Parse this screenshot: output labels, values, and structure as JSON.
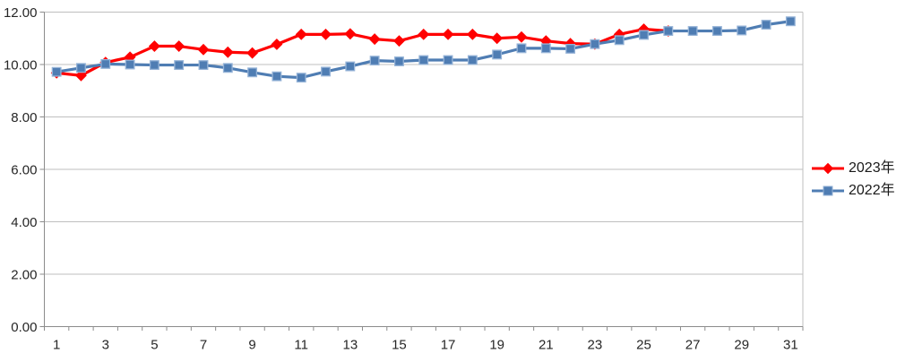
{
  "chart_data": {
    "type": "line",
    "title": "",
    "xlabel": "",
    "ylabel": "",
    "x": [
      1,
      2,
      3,
      4,
      5,
      6,
      7,
      8,
      9,
      10,
      11,
      12,
      13,
      14,
      15,
      16,
      17,
      18,
      19,
      20,
      21,
      22,
      23,
      24,
      25,
      26,
      27,
      28,
      29,
      30,
      31
    ],
    "x_tick_labels": [
      "1",
      "3",
      "5",
      "7",
      "9",
      "11",
      "13",
      "15",
      "17",
      "19",
      "21",
      "23",
      "25",
      "27",
      "29",
      "31"
    ],
    "y_tick_labels": [
      "0.00",
      "2.00",
      "4.00",
      "6.00",
      "8.00",
      "10.00",
      "12.00"
    ],
    "ylim": [
      0,
      12
    ],
    "grid": true,
    "legend_position": "right",
    "series": [
      {
        "name": "2023年",
        "color": "#FF0000",
        "marker": "diamond",
        "marker_border": "#FF0000",
        "values": [
          9.68,
          9.58,
          10.08,
          10.28,
          10.7,
          10.7,
          10.57,
          10.47,
          10.44,
          10.77,
          11.15,
          11.15,
          11.17,
          10.97,
          10.9,
          11.15,
          11.15,
          11.15,
          11.0,
          11.05,
          10.9,
          10.8,
          10.78,
          11.15,
          11.35,
          11.28,
          null,
          null,
          null,
          null,
          null
        ]
      },
      {
        "name": "2022年",
        "color": "#4F7DB3",
        "marker": "square",
        "marker_border": "#95B3D7",
        "values": [
          9.72,
          9.87,
          10.02,
          10.0,
          9.98,
          9.98,
          9.98,
          9.87,
          9.7,
          9.55,
          9.5,
          9.73,
          9.93,
          10.15,
          10.12,
          10.17,
          10.17,
          10.17,
          10.38,
          10.62,
          10.62,
          10.6,
          10.78,
          10.93,
          11.13,
          11.28,
          11.28,
          11.28,
          11.3,
          11.52,
          11.65
        ]
      }
    ]
  },
  "colors": {
    "grid": "#BFBFBF",
    "axis": "#8C8C8C",
    "tick_text": "#262626",
    "legend_text": "#1A1A1A",
    "background": "#FFFFFF"
  }
}
